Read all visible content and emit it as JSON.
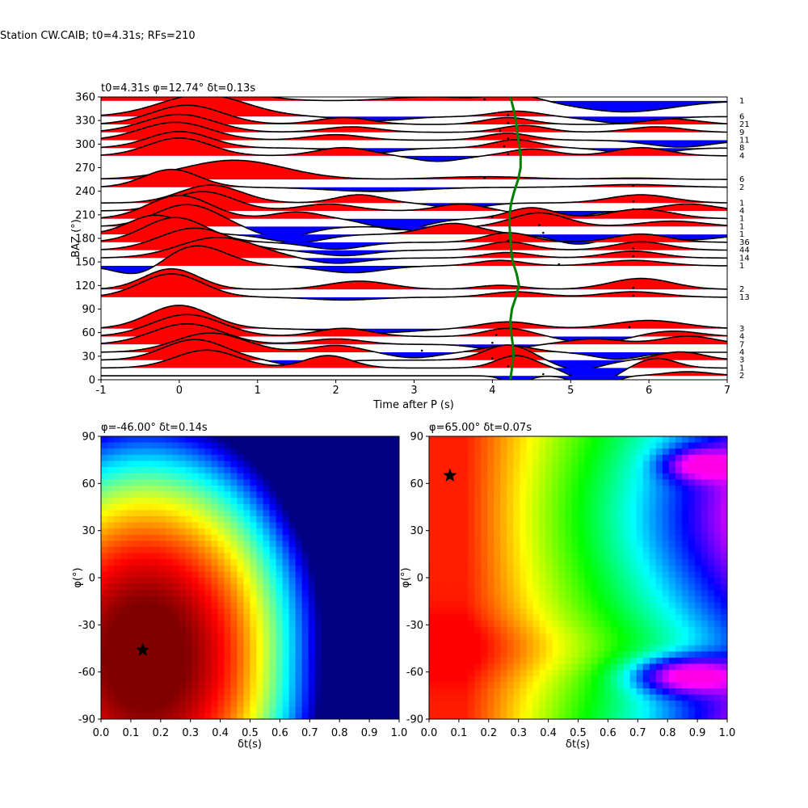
{
  "suptitle": "Station CW.CAIB; t0=4.31s; RFs=210",
  "chart_data": [
    {
      "type": "line",
      "title": "t0=4.31s φ=12.74° δt=0.13s",
      "xlabel": "Time after P (s)",
      "ylabel": "BAZ (°)",
      "xlim": [
        -1,
        7
      ],
      "ylim": [
        0,
        360
      ],
      "xticks": [
        -1,
        0,
        1,
        2,
        3,
        4,
        5,
        6,
        7
      ],
      "yticks": [
        0,
        30,
        60,
        90,
        120,
        150,
        180,
        210,
        240,
        270,
        300,
        330,
        360
      ],
      "positive_fill": "#ff0000",
      "negative_fill": "#0000ff",
      "t0_curve_color": "#008000",
      "t0_curve": [
        {
          "t": 4.23,
          "baz": 0
        },
        {
          "t": 4.25,
          "baz": 15
        },
        {
          "t": 4.27,
          "baz": 30
        },
        {
          "t": 4.26,
          "baz": 45
        },
        {
          "t": 4.24,
          "baz": 60
        },
        {
          "t": 4.23,
          "baz": 75
        },
        {
          "t": 4.25,
          "baz": 90
        },
        {
          "t": 4.3,
          "baz": 105
        },
        {
          "t": 4.34,
          "baz": 120
        },
        {
          "t": 4.31,
          "baz": 135
        },
        {
          "t": 4.26,
          "baz": 150
        },
        {
          "t": 4.24,
          "baz": 165
        },
        {
          "t": 4.23,
          "baz": 180
        },
        {
          "t": 4.22,
          "baz": 195
        },
        {
          "t": 4.22,
          "baz": 210
        },
        {
          "t": 4.24,
          "baz": 225
        },
        {
          "t": 4.28,
          "baz": 240
        },
        {
          "t": 4.33,
          "baz": 255
        },
        {
          "t": 4.36,
          "baz": 270
        },
        {
          "t": 4.36,
          "baz": 285
        },
        {
          "t": 4.34,
          "baz": 300
        },
        {
          "t": 4.32,
          "baz": 315
        },
        {
          "t": 4.3,
          "baz": 330
        },
        {
          "t": 4.27,
          "baz": 345
        },
        {
          "t": 4.23,
          "baz": 360
        }
      ],
      "traces": [
        {
          "baz": 5,
          "count": "2",
          "pulses": [
            [
              -0.2,
              0.25,
              0.0
            ],
            [
              4.3,
              0.15,
              -0.6
            ],
            [
              5.3,
              0.2,
              -1.2
            ],
            [
              6.5,
              0.3,
              0.3
            ]
          ],
          "dots": [
            4.65
          ]
        },
        {
          "baz": 15,
          "count": "1",
          "pulses": [
            [
              0.35,
              0.4,
              1.3
            ],
            [
              1.9,
              0.3,
              0.9
            ],
            [
              4.3,
              0.25,
              0.9
            ],
            [
              5.3,
              0.25,
              -1.2
            ],
            [
              6.1,
              0.25,
              0.7
            ]
          ],
          "dots": [
            4.2
          ]
        },
        {
          "baz": 25,
          "count": "3",
          "pulses": [
            [
              0.2,
              0.4,
              1.5
            ],
            [
              1.6,
              0.3,
              -0.5
            ],
            [
              4.2,
              0.3,
              1.1
            ],
            [
              5.1,
              0.3,
              -0.7
            ],
            [
              6.4,
              0.3,
              0.6
            ]
          ],
          "dots": [
            4.0
          ]
        },
        {
          "baz": 35,
          "count": "4",
          "pulses": [
            [
              0.4,
              0.45,
              1.4
            ],
            [
              2.0,
              0.3,
              0.5
            ],
            [
              3.0,
              0.3,
              -0.4
            ],
            [
              4.2,
              0.3,
              0.5
            ],
            [
              5.6,
              0.3,
              -0.5
            ]
          ],
          "dots": [
            3.1
          ]
        },
        {
          "baz": 45,
          "count": "7",
          "pulses": [
            [
              0.1,
              0.45,
              1.5
            ],
            [
              2.0,
              0.35,
              0.4
            ],
            [
              4.1,
              0.3,
              -0.4
            ],
            [
              5.3,
              0.35,
              0.4
            ],
            [
              6.5,
              0.35,
              0.6
            ]
          ],
          "dots": [
            4.0
          ]
        },
        {
          "baz": 55,
          "count": "4",
          "pulses": [
            [
              0.1,
              0.45,
              1.6
            ],
            [
              2.1,
              0.35,
              0.6
            ],
            [
              4.2,
              0.3,
              0.6
            ],
            [
              5.3,
              0.35,
              -0.5
            ],
            [
              6.3,
              0.35,
              0.4
            ]
          ],
          "dots": [
            4.05
          ]
        },
        {
          "baz": 65,
          "count": "3",
          "pulses": [
            [
              0.0,
              0.4,
              1.7
            ],
            [
              2.5,
              0.5,
              -0.3
            ],
            [
              4.2,
              0.35,
              0.5
            ],
            [
              6.0,
              0.45,
              0.6
            ]
          ],
          "dots": [
            5.75
          ]
        },
        {
          "baz": 105,
          "count": "13",
          "pulses": [
            [
              -0.1,
              0.4,
              1.7
            ],
            [
              2.1,
              0.4,
              -0.2
            ],
            [
              4.3,
              0.35,
              0.4
            ],
            [
              5.8,
              0.4,
              0.4
            ]
          ],
          "dots": [
            5.8
          ]
        },
        {
          "baz": 115,
          "count": "2",
          "pulses": [
            [
              -0.1,
              0.35,
              1.5
            ],
            [
              2.3,
              0.4,
              0.6
            ],
            [
              4.1,
              0.3,
              0.3
            ],
            [
              5.9,
              0.4,
              0.8
            ]
          ],
          "dots": [
            5.8
          ]
        },
        {
          "baz": 145,
          "count": "1",
          "pulses": [
            [
              -0.5,
              0.3,
              -0.8
            ],
            [
              0.2,
              0.4,
              1.5
            ],
            [
              2.2,
              0.4,
              -0.5
            ],
            [
              4.1,
              0.3,
              0.4
            ],
            [
              5.8,
              0.4,
              0.4
            ]
          ],
          "dots": [
            4.85
          ]
        },
        {
          "baz": 155,
          "count": "14",
          "pulses": [
            [
              0.5,
              0.5,
              1.5
            ],
            [
              2.0,
              0.35,
              -0.4
            ],
            [
              4.2,
              0.3,
              0.4
            ],
            [
              5.8,
              0.35,
              0.5
            ]
          ],
          "dots": [
            5.8
          ]
        },
        {
          "baz": 165,
          "count": "44",
          "pulses": [
            [
              0.2,
              0.45,
              1.6
            ],
            [
              2.1,
              0.35,
              -0.4
            ],
            [
              4.2,
              0.3,
              0.6
            ],
            [
              5.9,
              0.35,
              0.6
            ]
          ],
          "dots": [
            5.8
          ]
        },
        {
          "baz": 175,
          "count": "36",
          "pulses": [
            [
              -0.05,
              0.4,
              1.8
            ],
            [
              2.0,
              0.35,
              -0.5
            ],
            [
              4.2,
              0.3,
              0.7
            ],
            [
              5.9,
              0.35,
              0.6
            ]
          ],
          "dots": [
            4.2
          ]
        },
        {
          "baz": 185,
          "count": "1",
          "pulses": [
            [
              -0.3,
              0.35,
              1.4
            ],
            [
              1.5,
              0.35,
              -0.6
            ],
            [
              3.5,
              0.35,
              0.8
            ],
            [
              5.1,
              0.3,
              -0.7
            ],
            [
              6.5,
              0.4,
              -0.4
            ]
          ],
          "dots": [
            4.65
          ]
        },
        {
          "baz": 195,
          "count": "1",
          "pulses": [
            [
              0.1,
              0.4,
              1.6
            ],
            [
              1.3,
              0.35,
              -0.8
            ],
            [
              3.2,
              0.3,
              -0.4
            ],
            [
              4.6,
              0.35,
              1.0
            ],
            [
              6.3,
              0.4,
              0.4
            ]
          ],
          "dots": [
            4.6
          ]
        },
        {
          "baz": 205,
          "count": "1",
          "pulses": [
            [
              0.0,
              0.4,
              1.7
            ],
            [
              1.5,
              0.3,
              0.5
            ],
            [
              2.8,
              0.35,
              -0.8
            ],
            [
              4.5,
              0.3,
              0.8
            ],
            [
              5.9,
              0.4,
              0.7
            ]
          ],
          "dots": [
            4.0
          ]
        },
        {
          "baz": 215,
          "count": "4",
          "pulses": [
            [
              0.3,
              0.4,
              1.4
            ],
            [
              1.9,
              0.35,
              0.5
            ],
            [
              3.6,
              0.3,
              0.5
            ],
            [
              4.8,
              0.35,
              -0.6
            ],
            [
              6.5,
              0.35,
              0.5
            ]
          ],
          "dots": [
            5.8
          ]
        },
        {
          "baz": 225,
          "count": "1",
          "pulses": [
            [
              0.4,
              0.4,
              1.3
            ],
            [
              2.3,
              0.3,
              0.6
            ],
            [
              3.6,
              0.3,
              -0.4
            ],
            [
              5.9,
              0.4,
              0.6
            ]
          ],
          "dots": [
            5.8
          ]
        },
        {
          "baz": 245,
          "count": "2",
          "pulses": [
            [
              -0.1,
              0.35,
              1.3
            ],
            [
              2.5,
              0.6,
              -0.3
            ],
            [
              5.8,
              0.5,
              0.2
            ]
          ],
          "dots": [
            5.8
          ]
        },
        {
          "baz": 255,
          "count": "6",
          "pulses": [
            [
              0.7,
              0.65,
              1.4
            ],
            [
              3.9,
              0.6,
              0.2
            ],
            [
              5.8,
              0.4,
              0.1
            ]
          ],
          "dots": [
            3.9
          ]
        },
        {
          "baz": 285,
          "count": "4",
          "pulses": [
            [
              0.0,
              0.4,
              1.3
            ],
            [
              2.1,
              0.35,
              0.6
            ],
            [
              3.3,
              0.3,
              -0.4
            ],
            [
              4.5,
              0.3,
              0.5
            ],
            [
              5.9,
              0.35,
              0.6
            ]
          ],
          "dots": [
            4.2
          ]
        },
        {
          "baz": 295,
          "count": "8",
          "pulses": [
            [
              0.0,
              0.4,
              1.2
            ],
            [
              2.4,
              0.35,
              -0.4
            ],
            [
              4.3,
              0.3,
              0.6
            ],
            [
              5.9,
              0.35,
              -0.5
            ]
          ],
          "dots": [
            4.15
          ]
        },
        {
          "baz": 305,
          "count": "11",
          "pulses": [
            [
              -0.05,
              0.45,
              1.3
            ],
            [
              2.0,
              0.35,
              0.4
            ],
            [
              4.2,
              0.3,
              0.5
            ],
            [
              6.4,
              0.4,
              -0.5
            ]
          ],
          "dots": [
            4.2
          ]
        },
        {
          "baz": 315,
          "count": "9",
          "pulses": [
            [
              0.0,
              0.45,
              1.3
            ],
            [
              2.2,
              0.35,
              0.4
            ],
            [
              4.4,
              0.3,
              0.5
            ],
            [
              6.1,
              0.35,
              0.4
            ]
          ],
          "dots": [
            4.1
          ]
        },
        {
          "baz": 325,
          "count": "21",
          "pulses": [
            [
              0.1,
              0.45,
              1.4
            ],
            [
              2.1,
              0.35,
              0.5
            ],
            [
              4.2,
              0.3,
              0.5
            ],
            [
              6.3,
              0.35,
              0.4
            ]
          ],
          "dots": [
            4.2
          ]
        },
        {
          "baz": 335,
          "count": "6",
          "pulses": [
            [
              0.3,
              0.55,
              1.6
            ],
            [
              2.5,
              0.4,
              -0.3
            ],
            [
              4.3,
              0.3,
              0.4
            ],
            [
              5.7,
              0.4,
              -0.5
            ]
          ],
          "dots": [
            4.2
          ]
        },
        {
          "baz": 355,
          "count": "1",
          "pulses": [
            [
              0.1,
              0.6,
              1.5
            ],
            [
              3.2,
              0.5,
              0.3
            ],
            [
              4.3,
              0.3,
              0.5
            ],
            [
              5.7,
              0.6,
              -0.8
            ]
          ],
          "dots": [
            3.9
          ]
        }
      ]
    },
    {
      "type": "heatmap",
      "title": "φ=-46.00° δt=0.14s",
      "xlabel": "δt(s)",
      "ylabel": "φ(°)",
      "xlim": [
        0.0,
        1.0
      ],
      "ylim": [
        -90,
        90
      ],
      "xticks": [
        0.0,
        0.1,
        0.2,
        0.3,
        0.4,
        0.5,
        0.6,
        0.7,
        0.8,
        0.9,
        1.0
      ],
      "yticks": [
        -90,
        -60,
        -30,
        0,
        30,
        60,
        90
      ],
      "colormap": "jet",
      "best": {
        "dt": 0.14,
        "phi": -46
      }
    },
    {
      "type": "heatmap",
      "title": "φ=65.00° δt=0.07s",
      "xlabel": "δt(s)",
      "ylabel": "φ(°)",
      "xlim": [
        0.0,
        1.0
      ],
      "ylim": [
        -90,
        90
      ],
      "xticks": [
        0.0,
        0.1,
        0.2,
        0.3,
        0.4,
        0.5,
        0.6,
        0.7,
        0.8,
        0.9,
        1.0
      ],
      "yticks": [
        -90,
        -60,
        -30,
        0,
        30,
        60,
        90
      ],
      "colormap": "hsv",
      "best": {
        "dt": 0.07,
        "phi": 65
      }
    }
  ]
}
